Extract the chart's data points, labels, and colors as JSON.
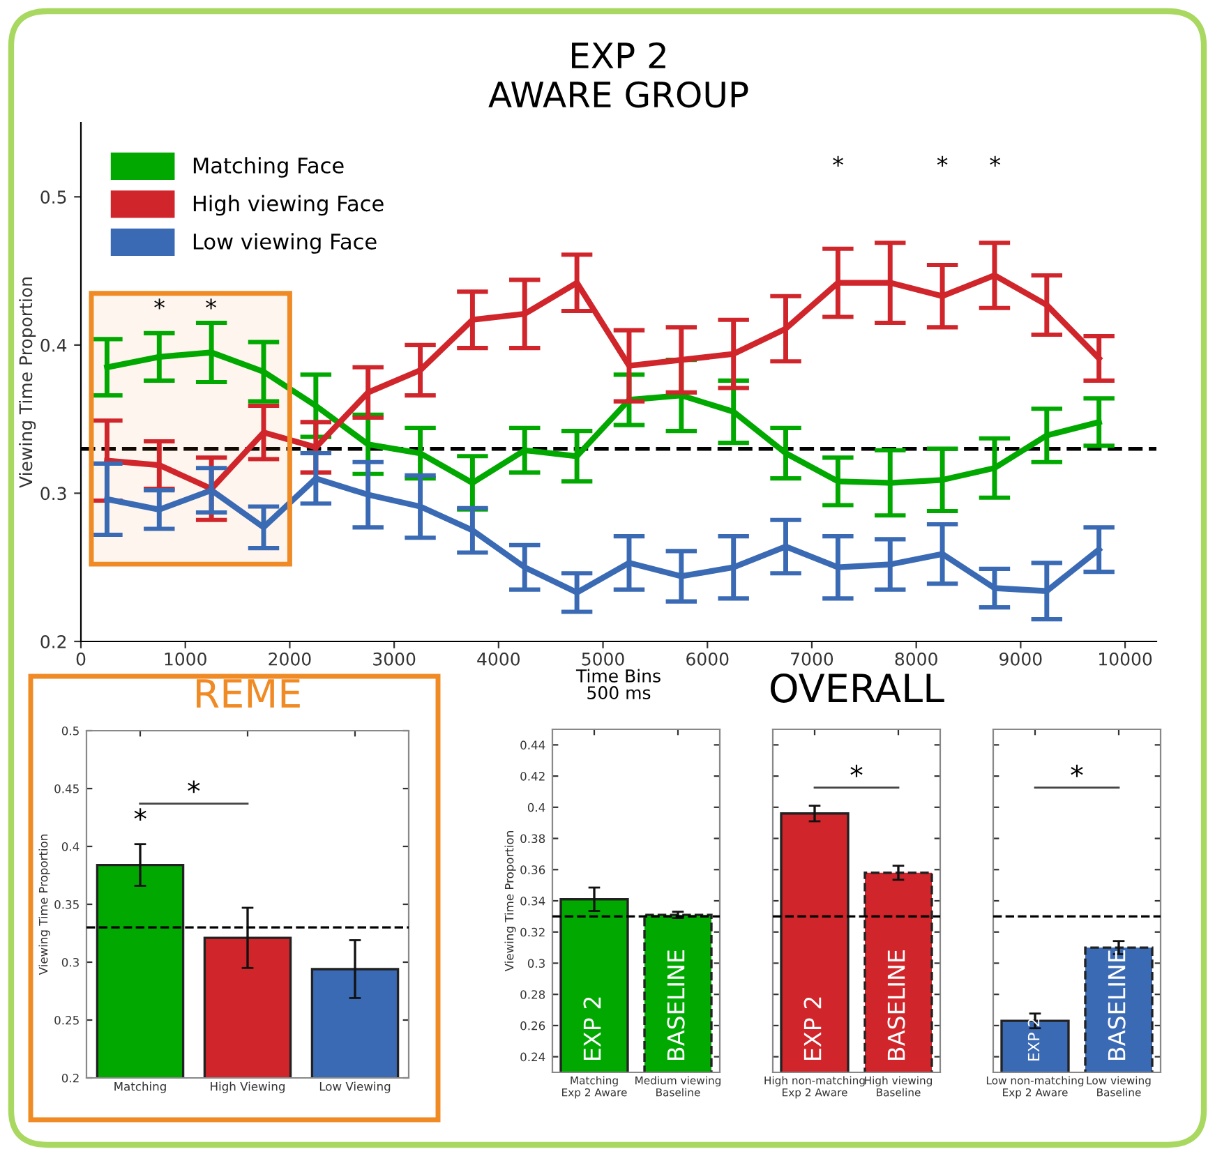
{
  "chart_data": [
    {
      "type": "line",
      "title": "EXP 2\nAWARE GROUP",
      "xlabel": "Time Bins\n500 ms",
      "ylabel": "Viewing Time Proportion",
      "x": [
        250,
        750,
        1250,
        1750,
        2250,
        2750,
        3250,
        3750,
        4250,
        4750,
        5250,
        5750,
        6250,
        6750,
        7250,
        7750,
        8250,
        8750,
        9250,
        9750
      ],
      "series": [
        {
          "name": "Matching Face",
          "color": "#00a800",
          "values": [
            0.385,
            0.392,
            0.395,
            0.382,
            0.359,
            0.333,
            0.327,
            0.307,
            0.329,
            0.325,
            0.363,
            0.366,
            0.355,
            0.327,
            0.308,
            0.307,
            0.309,
            0.317,
            0.339,
            0.348
          ],
          "errors": [
            0.019,
            0.016,
            0.02,
            0.02,
            0.021,
            0.02,
            0.017,
            0.018,
            0.015,
            0.017,
            0.017,
            0.024,
            0.021,
            0.017,
            0.016,
            0.022,
            0.021,
            0.02,
            0.018,
            0.016
          ]
        },
        {
          "name": "High viewing Face",
          "color": "#d0252a",
          "values": [
            0.322,
            0.319,
            0.303,
            0.341,
            0.331,
            0.368,
            0.383,
            0.417,
            0.421,
            0.442,
            0.386,
            0.39,
            0.394,
            0.411,
            0.442,
            0.442,
            0.433,
            0.447,
            0.427,
            0.391
          ],
          "errors": [
            0.027,
            0.016,
            0.021,
            0.018,
            0.017,
            0.017,
            0.017,
            0.019,
            0.023,
            0.019,
            0.024,
            0.022,
            0.023,
            0.022,
            0.023,
            0.027,
            0.021,
            0.022,
            0.02,
            0.015
          ]
        },
        {
          "name": "Low viewing Face",
          "color": "#3a6ab4",
          "values": [
            0.296,
            0.289,
            0.302,
            0.277,
            0.31,
            0.299,
            0.291,
            0.275,
            0.25,
            0.233,
            0.253,
            0.244,
            0.25,
            0.264,
            0.25,
            0.252,
            0.259,
            0.236,
            0.234,
            0.262
          ],
          "errors": [
            0.024,
            0.013,
            0.015,
            0.014,
            0.017,
            0.022,
            0.021,
            0.015,
            0.015,
            0.013,
            0.018,
            0.017,
            0.021,
            0.018,
            0.021,
            0.017,
            0.02,
            0.013,
            0.019,
            0.015
          ]
        }
      ],
      "xlim": [
        0,
        10300
      ],
      "ylim": [
        0.2,
        0.55
      ],
      "xticks": [
        0,
        1000,
        2000,
        3000,
        4000,
        5000,
        6000,
        7000,
        8000,
        9000,
        10000
      ],
      "yticks": [
        0.2,
        0.3,
        0.4,
        0.5
      ],
      "ref_lines": [
        {
          "axis": "y",
          "value": 0.33,
          "color": "#000000",
          "line_style": "dashed"
        }
      ],
      "bands": [
        {
          "axis": "x",
          "from": 100,
          "to": 2000,
          "color": "#f08a24"
        }
      ],
      "legend": "top left",
      "annotations": [
        "*",
        "*",
        "*",
        "*",
        "*"
      ]
    },
    {
      "type": "bar",
      "title": "REME",
      "ylabel": "Viewing Time Proportion",
      "categories": [
        "Matching",
        "High Viewing",
        "Low Viewing"
      ],
      "series": [
        {
          "color": "#00a800",
          "values": [
            0.384,
            null,
            null
          ],
          "errors": [
            0.018,
            null,
            null
          ]
        },
        {
          "color": "#d0252a",
          "values": [
            null,
            0.321,
            null
          ],
          "errors": [
            null,
            0.026,
            null
          ]
        },
        {
          "color": "#3a6ab4",
          "values": [
            null,
            null,
            0.294
          ],
          "errors": [
            null,
            null,
            0.025
          ]
        }
      ],
      "ylim": [
        0.2,
        0.5
      ],
      "yticks": [
        0.2,
        0.25,
        0.3,
        0.35,
        0.4,
        0.45,
        0.5
      ],
      "ref_lines": [
        {
          "axis": "y",
          "value": 0.33,
          "color": "#000000",
          "line_style": "dashed"
        }
      ],
      "annotations": [
        "*",
        "*"
      ]
    },
    {
      "type": "bar",
      "ylabel": "Viewing Time Proportion",
      "categories": [
        "Matching\nExp 2 Aware",
        "Medium viewing\nBaseline"
      ],
      "series": [
        {
          "color": "#00a800",
          "line_style": "solid",
          "values": [
            0.341,
            null
          ],
          "errors": [
            0.0075,
            null
          ]
        },
        {
          "color": "#00a800",
          "line_style": "dashed",
          "values": [
            null,
            0.331
          ],
          "errors": [
            null,
            0.002
          ]
        }
      ],
      "ylim": [
        0.23,
        0.45
      ],
      "yticks": [
        0.24,
        0.26,
        0.28,
        0.3,
        0.32,
        0.34,
        0.36,
        0.38,
        0.4,
        0.42,
        0.44
      ],
      "ref_lines": [
        {
          "axis": "y",
          "value": 0.33,
          "color": "#000000",
          "line_style": "dashed"
        }
      ],
      "annotations": [
        "EXP 2",
        "BASELINE"
      ]
    },
    {
      "type": "bar",
      "title": "OVERALL",
      "categories": [
        "High non-matching\nExp 2 Aware",
        "High viewing\nBaseline"
      ],
      "series": [
        {
          "color": "#d0252a",
          "line_style": "solid",
          "values": [
            0.396,
            null
          ],
          "errors": [
            0.005,
            null
          ]
        },
        {
          "color": "#d0252a",
          "line_style": "dashed",
          "values": [
            null,
            0.358
          ],
          "errors": [
            null,
            0.0045
          ]
        }
      ],
      "ylim": [
        0.23,
        0.45
      ],
      "yticks": [
        0.24,
        0.26,
        0.28,
        0.3,
        0.32,
        0.34,
        0.36,
        0.38,
        0.4,
        0.42,
        0.44
      ],
      "tick_labels": "x",
      "ref_lines": [
        {
          "axis": "y",
          "value": 0.33,
          "color": "#000000",
          "line_style": "dashed"
        }
      ],
      "annotations": [
        "EXP 2",
        "BASELINE",
        "*"
      ]
    },
    {
      "type": "bar",
      "categories": [
        "Low non-matching\nExp 2 Aware",
        "Low viewing\nBaseline"
      ],
      "series": [
        {
          "color": "#3a6ab4",
          "line_style": "solid",
          "values": [
            0.263,
            null
          ],
          "errors": [
            0.0047,
            null
          ]
        },
        {
          "color": "#3a6ab4",
          "line_style": "dashed",
          "values": [
            null,
            0.31
          ],
          "errors": [
            null,
            0.0042
          ]
        }
      ],
      "ylim": [
        0.23,
        0.45
      ],
      "yticks": [
        0.24,
        0.26,
        0.28,
        0.3,
        0.32,
        0.34,
        0.36,
        0.38,
        0.4,
        0.42,
        0.44
      ],
      "tick_labels": "x",
      "ref_lines": [
        {
          "axis": "y",
          "value": 0.33,
          "color": "#000000",
          "line_style": "dashed"
        }
      ],
      "annotations": [
        "EXP 2",
        "BASELINE",
        "*"
      ]
    }
  ]
}
